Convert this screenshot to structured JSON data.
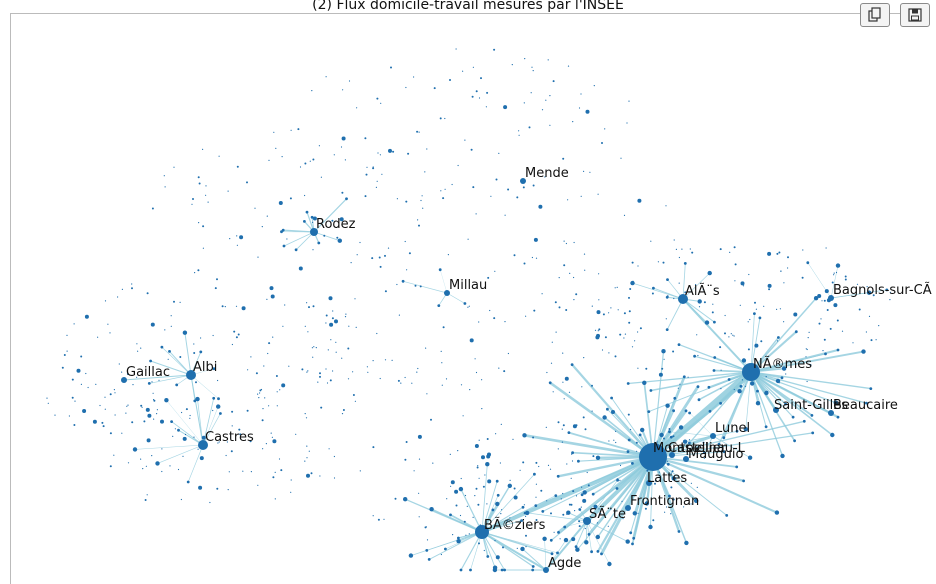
{
  "title": "(2) Flux domicile-travail mesurés par l'INSEE",
  "toolbar": {
    "copy_icon": "copy-icon",
    "save_icon": "save-icon"
  },
  "colors": {
    "node": "#1f6fae",
    "edge": "#8ecbdc",
    "edge_dark": "#5aaccc"
  },
  "nodes": [
    {
      "label": "Mende",
      "size": 3
    },
    {
      "label": "Rodez",
      "size": 4
    },
    {
      "label": "Millau",
      "size": 3
    },
    {
      "label": "AlÃ¨s",
      "size": 5
    },
    {
      "label": "Bagnols-sur-CÃ",
      "size": 3
    },
    {
      "label": "NÃ®mes",
      "size": 9
    },
    {
      "label": "Gaillac",
      "size": 3
    },
    {
      "label": "Albi",
      "size": 5
    },
    {
      "label": "Castres",
      "size": 5
    },
    {
      "label": "Saint-Gilles",
      "size": 3
    },
    {
      "label": "Beaucaire",
      "size": 3
    },
    {
      "label": "Lunel",
      "size": 3
    },
    {
      "label": "Montpellier",
      "size": 14
    },
    {
      "label": "Castelnau-L",
      "size": 3
    },
    {
      "label": "Mauguio",
      "size": 3
    },
    {
      "label": "Lattes",
      "size": 3
    },
    {
      "label": "Frontignan",
      "size": 3
    },
    {
      "label": "SÃ¨te",
      "size": 4
    },
    {
      "label": "BÃ©ziers",
      "size": 7
    },
    {
      "label": "Agde",
      "size": 3
    }
  ]
}
